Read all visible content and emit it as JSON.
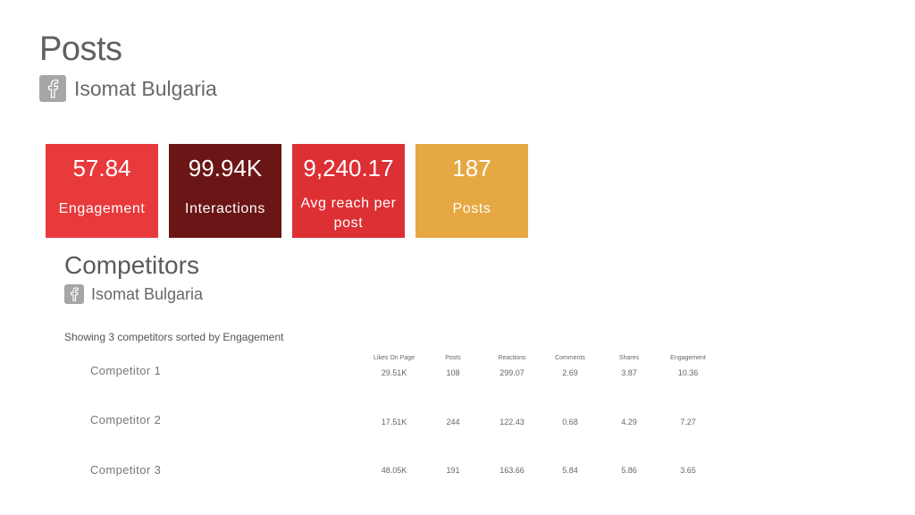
{
  "header": {
    "title": "Posts",
    "page_name": "Isomat Bulgaria",
    "platform_icon": "facebook-icon"
  },
  "kpis": [
    {
      "value": "57.84",
      "label": "Engagement",
      "color": "#e8393b"
    },
    {
      "value": "99.94K",
      "label": "Interactions",
      "color": "#6b1616"
    },
    {
      "value": "9,240.17",
      "label": "Avg reach per post",
      "color": "#dd3034"
    },
    {
      "value": "187",
      "label": "Posts",
      "color": "#e5a843"
    }
  ],
  "competitors": {
    "title": "Competitors",
    "page_name": "Isomat Bulgaria",
    "platform_icon": "facebook-icon",
    "summary": "Showing 3 competitors sorted by Engagement",
    "columns": [
      "Likes On Page",
      "Posts",
      "Reactions",
      "Comments",
      "Shares",
      "Engagement"
    ],
    "rows": [
      {
        "name": "Competitor 1",
        "values": [
          "29.51K",
          "108",
          "299.07",
          "2.69",
          "3.87",
          "10.36"
        ]
      },
      {
        "name": "Competitor 2",
        "values": [
          "17.51K",
          "244",
          "122.43",
          "0.68",
          "4.29",
          "7.27"
        ]
      },
      {
        "name": "Competitor 3",
        "values": [
          "48.05K",
          "191",
          "163.66",
          "5.84",
          "5.86",
          "3.65"
        ]
      }
    ]
  }
}
